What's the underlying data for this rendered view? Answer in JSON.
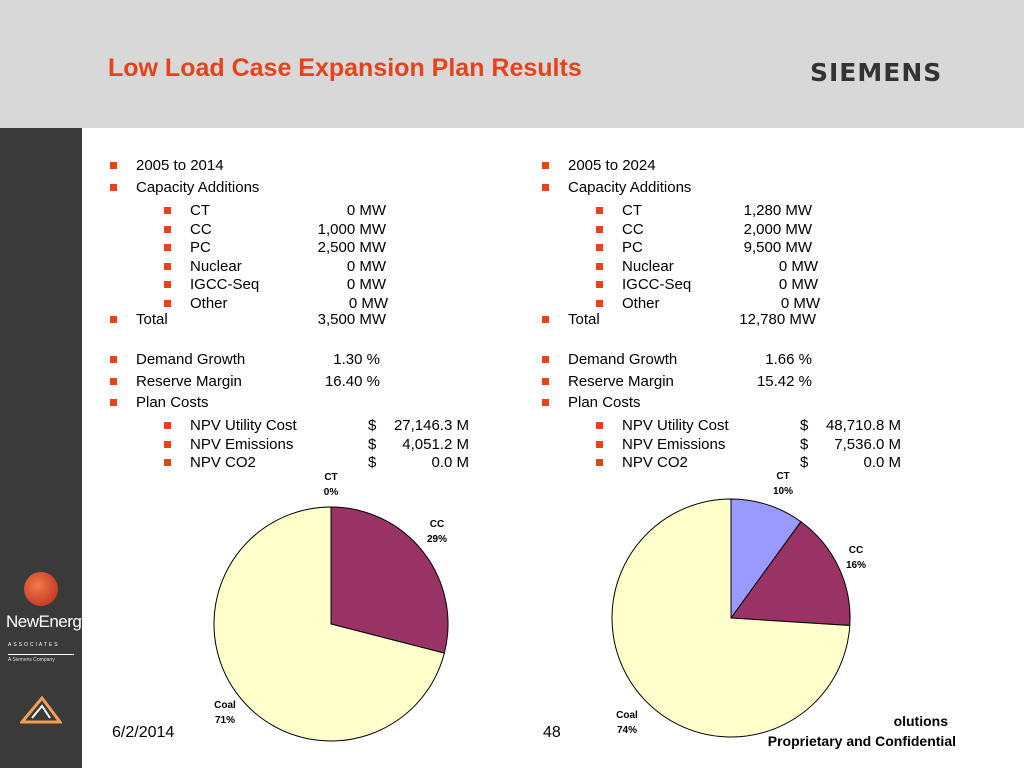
{
  "header": {
    "title": "Low Load Case Expansion Plan Results",
    "brand": "SIEMENS"
  },
  "sidebar": {
    "logo_name": "NewEnergy",
    "logo_sub": "ASSOCIATES",
    "logo_sub2": "A Siemens Company"
  },
  "left": {
    "period": "2005 to 2014",
    "capacity_heading": "Capacity Additions",
    "capacity": [
      {
        "label": "CT",
        "value": "0 MW"
      },
      {
        "label": "CC",
        "value": "1,000 MW"
      },
      {
        "label": "PC",
        "value": "2,500 MW"
      },
      {
        "label": "Nuclear",
        "value": "0 MW"
      },
      {
        "label": "IGCC-Seq",
        "value": "0 MW"
      },
      {
        "label": "Other",
        "value": "0 MW"
      }
    ],
    "total_label": "Total",
    "total_value": "3,500 MW",
    "demand_label": "Demand Growth",
    "demand_value": "1.30 %",
    "reserve_label": "Reserve Margin",
    "reserve_value": "16.40 %",
    "plan_costs_label": "Plan Costs",
    "costs": [
      {
        "label": "NPV Utility Cost",
        "cur": "$",
        "value": "27,146.3 M"
      },
      {
        "label": "NPV Emissions",
        "cur": "$",
        "value": "4,051.2 M"
      },
      {
        "label": "NPV CO2",
        "cur": "$",
        "value": "0.0 M"
      }
    ]
  },
  "right": {
    "period": "2005 to 2024",
    "capacity_heading": "Capacity Additions",
    "capacity": [
      {
        "label": "CT",
        "value": "1,280 MW"
      },
      {
        "label": "CC",
        "value": "2,000 MW"
      },
      {
        "label": "PC",
        "value": "9,500 MW"
      },
      {
        "label": "Nuclear",
        "value": "0 MW"
      },
      {
        "label": "IGCC-Seq",
        "value": "0 MW"
      },
      {
        "label": "Other",
        "value": "0 MW"
      }
    ],
    "total_label": "Total",
    "total_value": "12,780 MW",
    "demand_label": "Demand Growth",
    "demand_value": "1.66 %",
    "reserve_label": "Reserve Margin",
    "reserve_value": "15.42 %",
    "plan_costs_label": "Plan Costs",
    "costs": [
      {
        "label": "NPV Utility Cost",
        "cur": "$",
        "value": "48,710.8 M"
      },
      {
        "label": "NPV Emissions",
        "cur": "$",
        "value": "7,536.0 M"
      },
      {
        "label": "NPV CO2",
        "cur": "$",
        "value": "0.0 M"
      }
    ]
  },
  "chart_data": [
    {
      "type": "pie",
      "slices": [
        {
          "name": "CT",
          "label": "0%",
          "value": 0,
          "color": "#9999ff"
        },
        {
          "name": "CC",
          "label": "29%",
          "value": 29,
          "color": "#993366"
        },
        {
          "name": "Coal",
          "label": "71%",
          "value": 71,
          "color": "#ffffcc"
        }
      ]
    },
    {
      "type": "pie",
      "slices": [
        {
          "name": "CT",
          "label": "10%",
          "value": 10,
          "color": "#9999ff"
        },
        {
          "name": "CC",
          "label": "16%",
          "value": 16,
          "color": "#993366"
        },
        {
          "name": "Coal",
          "label": "74%",
          "value": 74,
          "color": "#ffffcc"
        }
      ]
    }
  ],
  "footer": {
    "date": "6/2/2014",
    "page": "48",
    "line1": "olutions",
    "line2": "Proprietary and Confidential"
  }
}
